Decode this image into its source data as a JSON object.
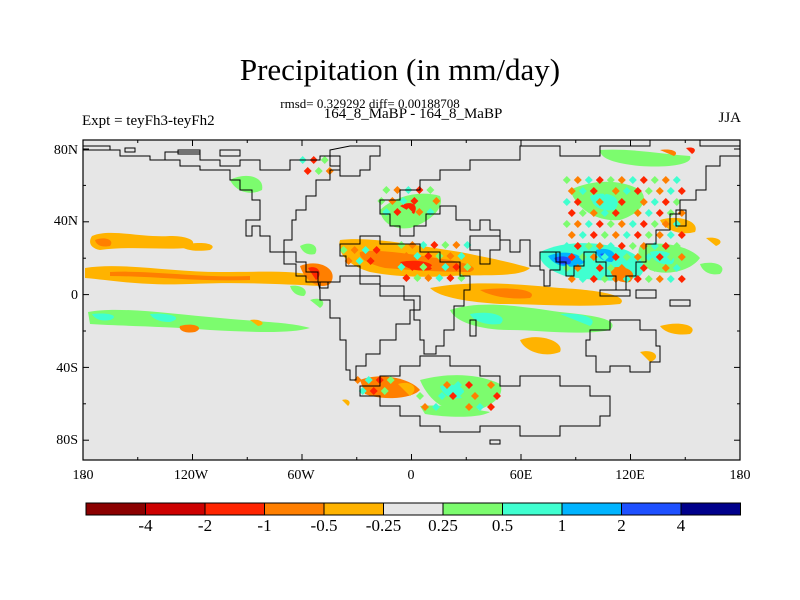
{
  "title": "Precipitation (in mm/day)",
  "stats": "rmsd= 0.329292 diff= 0.00188708",
  "periods": "164_8_MaBP - 164_8_MaBP",
  "expt": "Expt = teyFh3-teyFh2",
  "season": "JJA",
  "lat_labels": [
    "80N",
    "40N",
    "0",
    "40S",
    "80S"
  ],
  "lon_labels": [
    "180",
    "120W",
    "60W",
    "0",
    "60E",
    "120E",
    "180"
  ],
  "colorbar": {
    "labels": [
      "-4",
      "-2",
      "-1",
      "-0.5",
      "-0.25",
      "0.25",
      "0.5",
      "1",
      "2",
      "4"
    ],
    "colors": [
      "#8b0000",
      "#cd0000",
      "#ff2400",
      "#ff7f00",
      "#ffb300",
      "#e6e6e6",
      "#7cfc6e",
      "#40ffd0",
      "#00b4ff",
      "#1e50ff",
      "#00008b"
    ]
  }
}
